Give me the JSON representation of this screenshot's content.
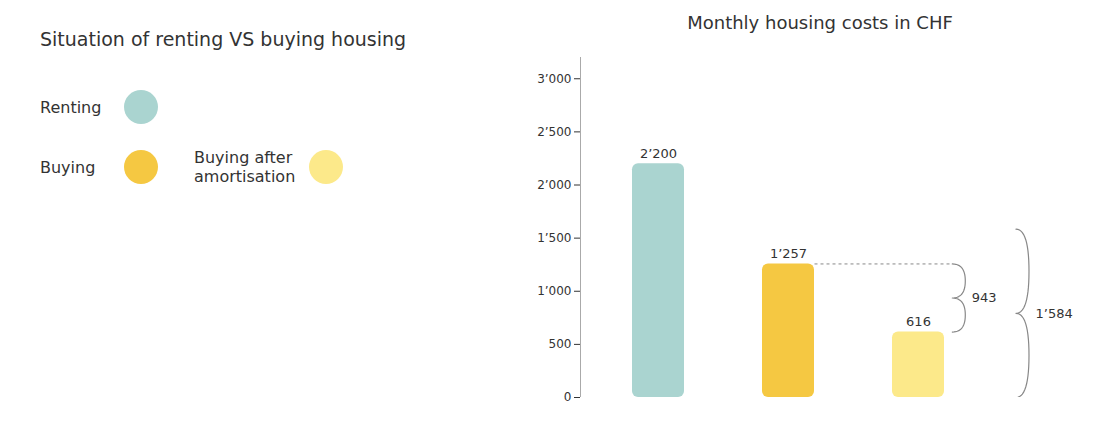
{
  "chart_data": {
    "type": "bar",
    "title": "Situation of renting VS buying housing",
    "subtitle": "Monthly housing costs in CHF",
    "categories": [
      "Renting",
      "Buying",
      "Buying after\namortisation"
    ],
    "values": [
      2200,
      1257,
      616
    ],
    "colors": [
      "#aad4d0",
      "#f5c842",
      "#fce98a"
    ],
    "value_labels": [
      "2’200",
      "1’257",
      "616"
    ],
    "data_labels": true,
    "ylim": [
      0,
      3200
    ],
    "yticks": [
      0,
      500,
      {
        "value": 1000,
        "label": "1’000"
      },
      {
        "value": 1500,
        "label": "1’500"
      },
      {
        "value": 2000,
        "label": "2’000"
      },
      {
        "value": 2500,
        "label": "2’500"
      },
      {
        "value": 3000,
        "label": "3’000"
      }
    ],
    "grid": false,
    "tick_labels": "y",
    "legend": "left",
    "annotations": [
      {
        "text": "943",
        "y_from": 616,
        "y_to": 1257,
        "category": "Buying after\namortisation",
        "color": "#888888"
      },
      {
        "text": "1’584",
        "y_from": 0,
        "y_to": 1584,
        "color": "#888888"
      }
    ]
  }
}
